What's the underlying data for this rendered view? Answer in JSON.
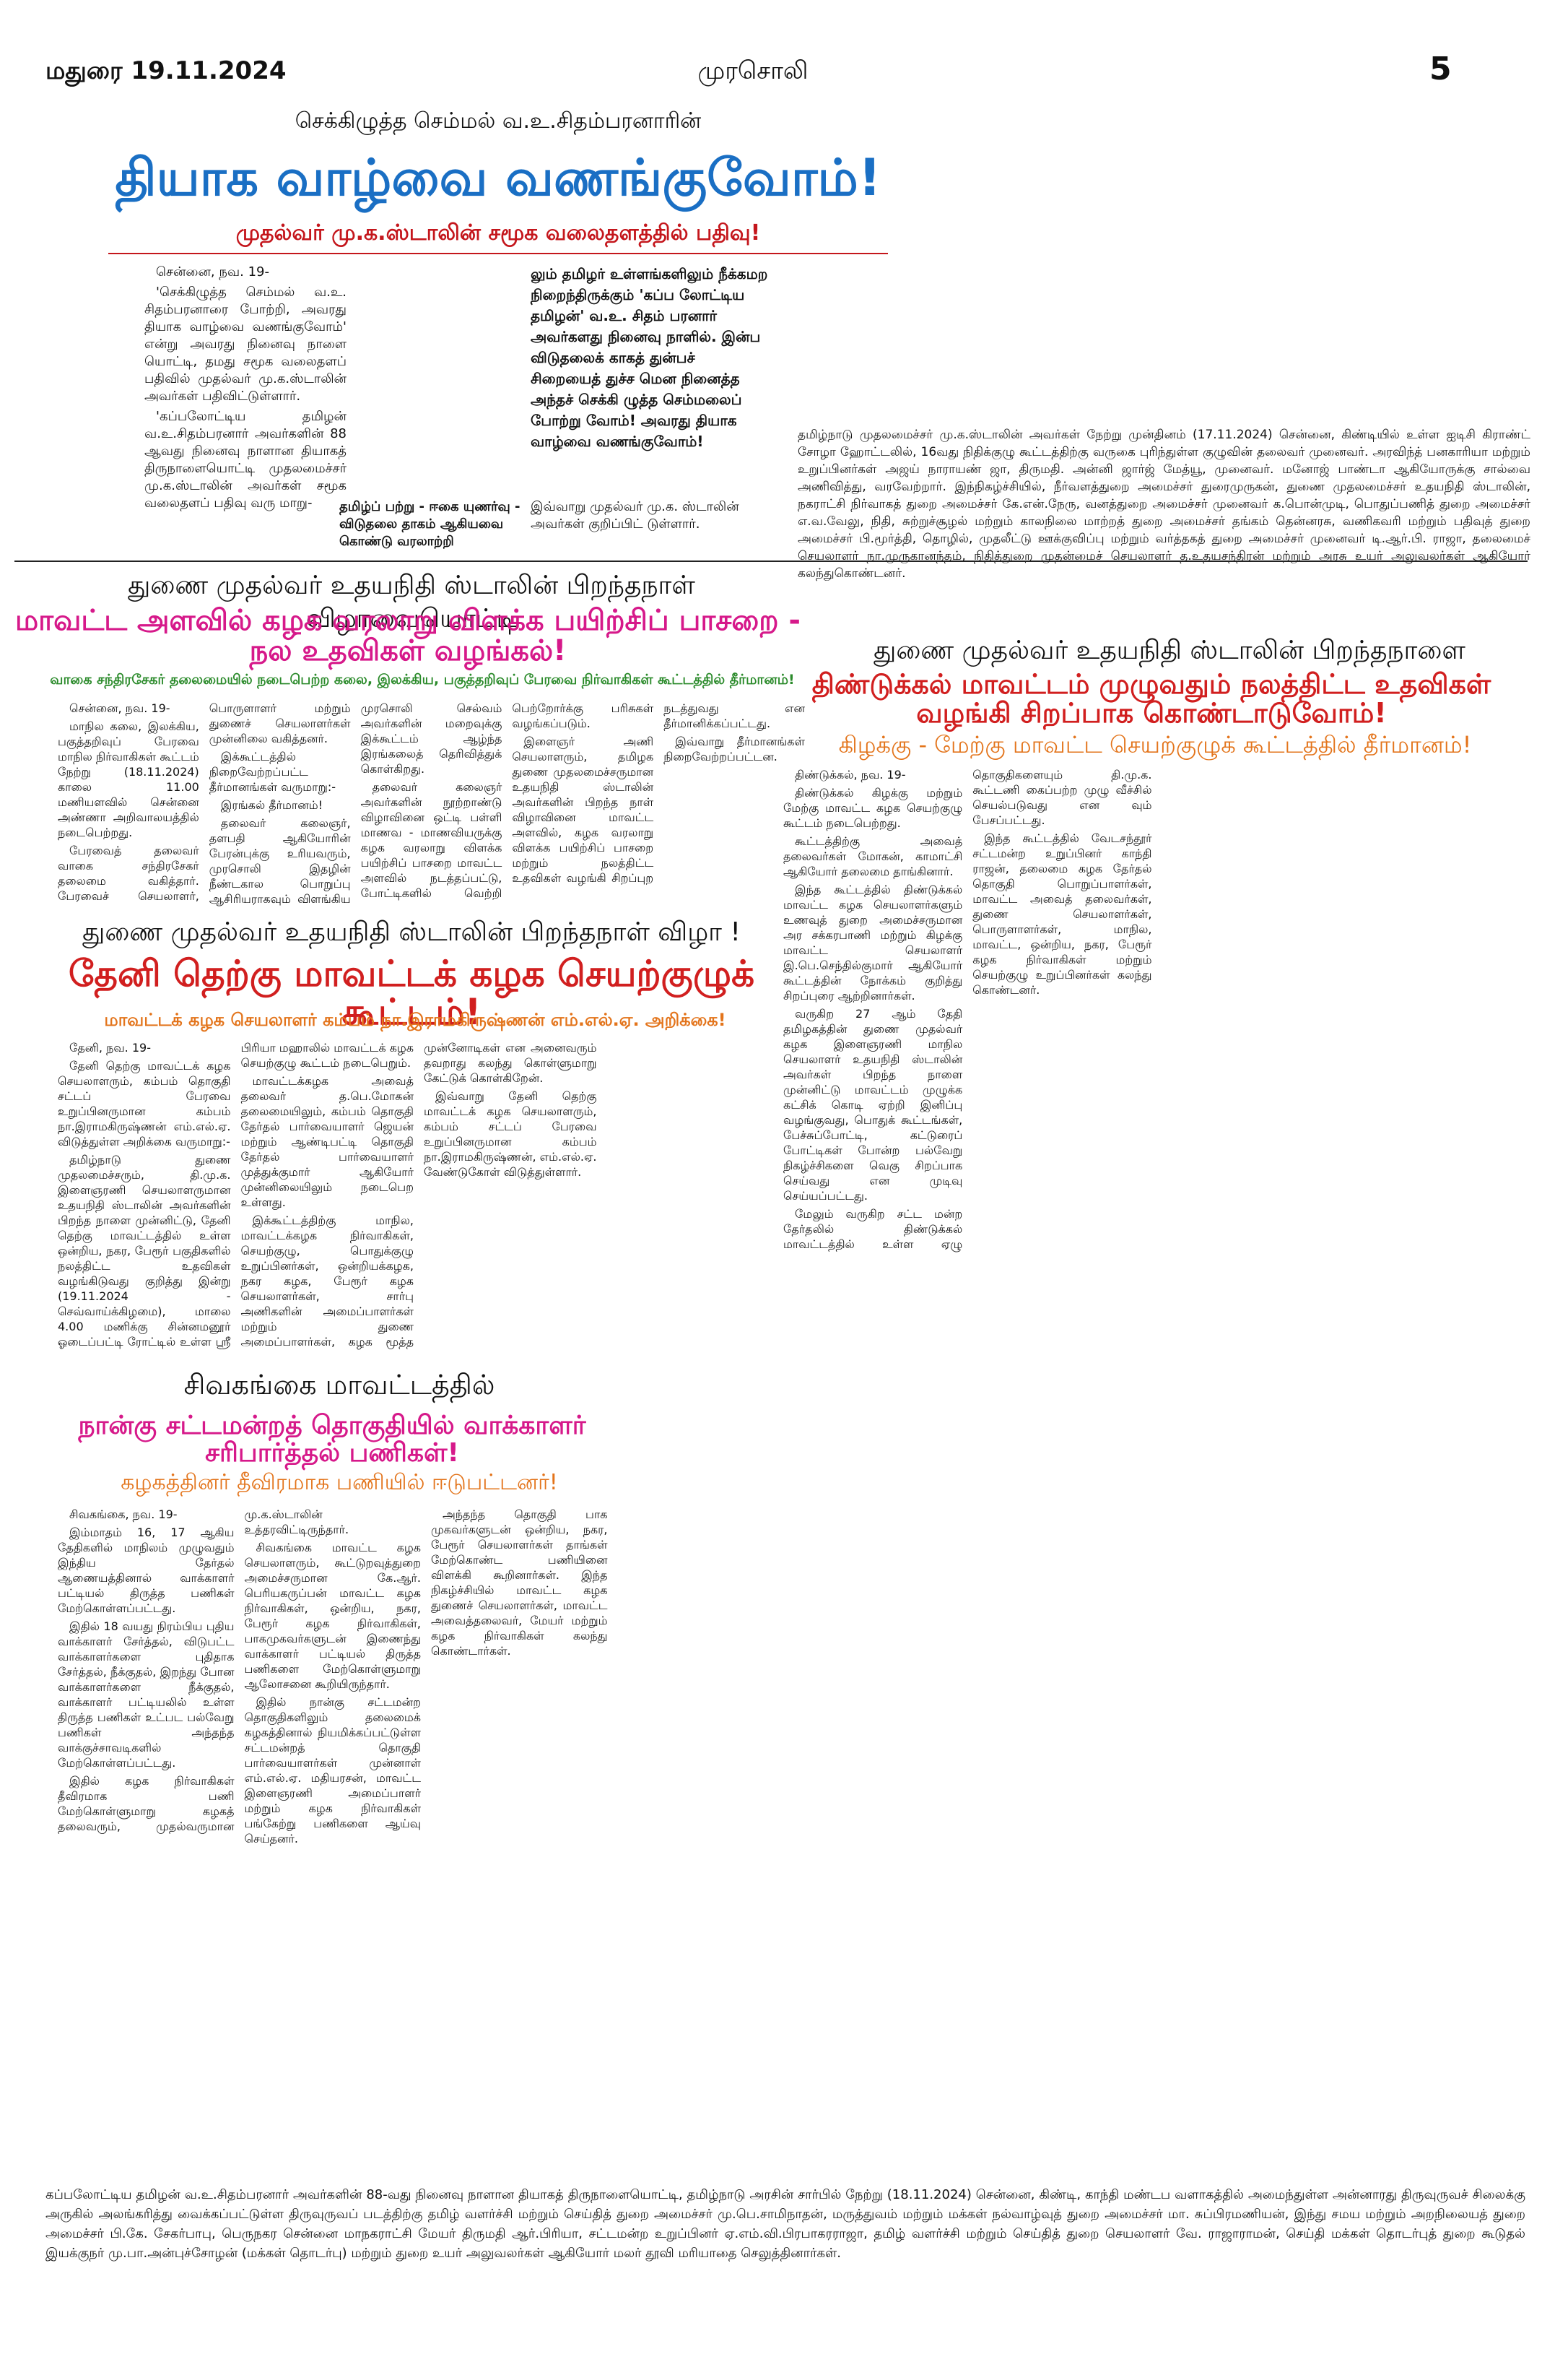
{
  "header": {
    "city_date": "மதுரை 19.11.2024",
    "paper": "முரசொலி",
    "page": "5"
  },
  "article1": {
    "kicker": "செக்கிழுத்த செம்மல் வ.உ.சிதம்பரனாரின்",
    "headline": "தியாக வாழ்வை வணங்குவோம்!",
    "subhead": "முதல்வர் மு.க.ஸ்டாலின் சமூக வலைதளத்தில் பதிவு!",
    "body": [
      "சென்னை, நவ. 19-",
      "'செக்கிழுத்த செம்மல் வ.உ. சிதம்பரனாரை போற்றி, அவரது தியாக வாழ்வை வணங்குவோம்' என்று அவரது நினைவு நாளை யொட்டி, தமது சமூக வலைதளப் பதிவில் முதல்வர் மு.க.ஸ்டாலின் அவர்கள் பதிவிட்டுள்ளார்.",
      "'கப்பலோட்டிய தமிழன் வ.உ.சிதம்பரனார் அவர்களின் 88 ஆவது நினைவு நாளான தியாகத் திருநாளையொட்டி முதலமைச்சர் மு.க.ஸ்டாலின் அவர்கள் சமூக வலைதளப் பதிவு வரு மாறு-"
    ],
    "bridge": "தமிழ்ப் பற்று - ஈகை யுணர்வு - விடுதலை தாகம் ஆகியவை கொண்டு வரலாற்றி",
    "box": "லும் தமிழர் உள்ளங்களிலும் நீக்கமற நிறைந்திருக்கும் 'கப்ப லோட்டிய தமிழன்' வ.உ. சிதம் பரனார் அவர்களது நினைவு நாளில். இன்ப விடுதலைக் காகத் துன்பச் சிறையைத் துச்ச மென நினைத்த அந்தச் செக்கி ழுத்த செம்மலைப் போற்று வோம்! அவரது தியாக வாழ்வை வணங்குவோம்!",
    "closing": "இவ்வாறு முதல்வர் மு.க. ஸ்டாலின் அவர்கள் குறிப்பிட் டுள்ளார்."
  },
  "photo_caption": "தமிழ்நாடு முதலமைச்சர் மு.க.ஸ்டாலின் அவர்கள் நேற்று முன்தினம் (17.11.2024) சென்னை, கிண்டியில் உள்ள ஐடிசி கிராண்ட் சோழா ஹோட்டலில், 16வது நிதிக்குழு கூட்டத்திற்கு வருகை புரிந்துள்ள குழுவின் தலைவர் முனைவர். அரவிந்த் பனகாரியா மற்றும் உறுப்பினர்கள் அஜய் நாராயண் ஜா, திருமதி. அன்னி ஜார்ஜ் மேத்யூ, முனைவர். மனோஜ் பாண்டா ஆகியோருக்கு சால்வை அணிவித்து, வரவேற்றார். இந்நிகழ்ச்சியில், நீர்வளத்துறை அமைச்சர் துரைமுருகன், துணை முதலமைச்சர் உதயநிதி ஸ்டாலின், நகராட்சி நிர்வாகத் துறை அமைச்சர் கே.என்.நேரு, வனத்துறை அமைச்சர் முனைவர் க.பொன்முடி, பொதுப்பணித் துறை அமைச்சர் எ.வ.வேலு, நிதி, சுற்றுச்சூழல் மற்றும் காலநிலை மாற்றத் துறை அமைச்சர் தங்கம் தென்னரசு, வணிகவரி மற்றும் பதிவுத் துறை அமைச்சர் பி.மூர்த்தி, தொழில், முதலீட்டு ஊக்குவிப்பு மற்றும் வர்த்தகத் துறை அமைச்சர் முனைவர் டி.ஆர்.பி. ராஜா, தலைமைச் செயலாளர் நா.முருகானந்தம், நிதித்துறை முதன்மைச் செயலாளர் த.உதயசந்திரன் மற்றும் அரசு உயர் அலுவலர்கள் ஆகியோர் கலந்துகொண்டனர்.",
  "article2": {
    "kicker": "துணை முதல்வர் உதயநிதி ஸ்டாலின் பிறந்தநாள் விழாவையொட்டி",
    "headline": "மாவட்ட அளவில் கழக வரலாறு விளக்க பயிற்சிப் பாசறை - நல உதவிகள் வழங்கல்!",
    "subhead": "வாகை சந்திரசேகர் தலைமையில் நடைபெற்ற கலை, இலக்கிய, பகுத்தறிவுப் பேரவை நிர்வாகிகள் கூட்டத்தில் தீர்மானம்!",
    "body": [
      "சென்னை, நவ. 19-",
      "மாநில கலை, இலக்கிய, பகுத்தறிவுப் பேரவை மாநில நிர்வாகிகள் கூட்டம் நேற்று (18.11.2024) காலை 11.00 மணியளவில் சென்னை அண்ணா அறிவாலயத்தில் நடைபெற்றது.",
      "பேரவைத் தலைவர் வாகை சந்திரசேகர் தலைமை வகித்தார். பேரவைச் செயலாளர், பொருளாளர் மற்றும் துணைச் செயலாளர்கள் முன்னிலை வகித்தனர்.",
      "இக்கூட்டத்தில் நிறைவேற்றப்பட்ட தீர்மானங்கள் வருமாறு:-",
      "இரங்கல் தீர்மானம்!",
      "தலைவர் கலைஞர், தளபதி ஆகியோரின் பேரன்புக்கு உரியவரும், முரசொலி இதழின் நீண்டகால பொறுப்பு ஆசிரியராகவும் விளங்கிய முரசொலி செல்வம் அவர்களின் மறைவுக்கு இக்கூட்டம் ஆழ்ந்த இரங்கலைத் தெரிவித்துக் கொள்கிறது.",
      "தலைவர் கலைஞர் அவர்களின் நூற்றாண்டு விழாவினை ஒட்டி பள்ளி மாணவ - மாணவியருக்கு கழக வரலாறு விளக்க பயிற்சிப் பாசறை மாவட்ட அளவில் நடத்தப்பட்டு, போட்டிகளில் வெற்றி பெற்றோர்க்கு பரிசுகள் வழங்கப்படும்.",
      "இளைஞர் அணி செயலாளரும், தமிழக துணை முதலமைச்சருமான உதயநிதி ஸ்டாலின் அவர்களின் பிறந்த நாள் விழாவினை மாவட்ட அளவில், கழக வரலாறு விளக்க பயிற்சிப் பாசறை மற்றும் நலத்திட்ட உதவிகள் வழங்கி சிறப்புற நடத்துவது என தீர்மானிக்கப்பட்டது.",
      "இவ்வாறு தீர்மானங்கள் நிறைவேற்றப்பட்டன."
    ]
  },
  "article3": {
    "kicker": "துணை முதல்வர் உதயநிதி ஸ்டாலின் பிறந்தநாளை",
    "headline": "திண்டுக்கல் மாவட்டம் முழுவதும் நலத்திட்ட உதவிகள் வழங்கி சிறப்பாக கொண்டாடுவோம்!",
    "subhead": "கிழக்கு - மேற்கு மாவட்ட செயற்குழுக் கூட்டத்தில் தீர்மானம்!",
    "body": [
      "திண்டுக்கல், நவ. 19-",
      "திண்டுக்கல் கிழக்கு மற்றும் மேற்கு மாவட்ட கழக செயற்குழு கூட்டம் நடைபெற்றது.",
      "கூட்டத்திற்கு அவைத் தலைவர்கள் மோகன், காமாட்சி ஆகியோர் தலைமை தாங்கினார்.",
      "இந்த கூட்டத்தில் திண்டுக்கல் மாவட்ட கழக செயலாளர்களும் உணவுத் துறை அமைச்சருமான அர சக்கரபாணி மற்றும் கிழக்கு மாவட்ட செயலாளர் இ.பெ.செந்தில்குமார் ஆகியோர் கூட்டத்தின் நோக்கம் குறித்து சிறப்புரை ஆற்றினார்கள்.",
      "வருகிற 27 ஆம் தேதி தமிழகத்தின் துணை முதல்வர் கழக இளைஞரணி மாநில செயலாளர் உதயநிதி ஸ்டாலின் அவர்கள் பிறந்த நாளை முன்னிட்டு மாவட்டம் முழுக்க கட்சிக் கொடி ஏற்றி இனிப்பு வழங்குவது, பொதுக் கூட்டங்கள், பேச்சுப்போட்டி, கட்டுரைப் போட்டிகள் போன்ற பல்வேறு நிகழ்ச்சிகளை வெகு சிறப்பாக செய்வது என முடிவு செய்யப்பட்டது.",
      "மேலும் வருகிற சட்ட மன்ற தேர்தலில் திண்டுக்கல் மாவட்டத்தில் உள்ள ஏழு தொகுதிகளையும் தி.மு.க. கூட்டணி கைப்பற்ற முழு வீச்சில் செயல்படுவது என வும் பேசப்பட்டது.",
      "இந்த கூட்டத்தில் வேடசந்தூர் சட்டமன்ற உறுப்பினர் காந்தி ராஜன், தலைமை கழக தேர்தல் தொகுதி பொறுப்பாளர்கள், மாவட்ட அவைத் தலைவர்கள், துணை செயலாளர்கள், பொருளாளர்கள், மாநில, மாவட்ட, ஒன்றிய, நகர, பேரூர் கழக நிர்வாகிகள் மற்றும் செயற்குழு உறுப்பினர்கள் கலந்து கொண்டனர்."
    ]
  },
  "article4": {
    "kicker": "துணை முதல்வர் உதயநிதி ஸ்டாலின் பிறந்தநாள் விழா !",
    "headline": "தேனி தெற்கு மாவட்டக் கழக செயற்குழுக் கூட்டம்!",
    "subhead": "மாவட்டக் கழக செயலாளர் கம்பம் நா.இராமகிருஷ்ணன் எம்.எல்.ஏ. அறிக்கை!",
    "body": [
      "தேனி, நவ. 19-",
      "தேனி தெற்கு மாவட்டக் கழக செயலாளரும், கம்பம் தொகுதி சட்டப் பேரவை உறுப்பினருமான கம்பம் நா.இராமகிருஷ்ணன் எம்.எல்.ஏ. விடுத்துள்ள அறிக்கை வருமாறு:-",
      "தமிழ்நாடு துணை முதலமைச்சரும், தி.மு.க. இளைஞரணி செயலாளருமான உதயநிதி ஸ்டாலின் அவர்களின் பிறந்த நாளை முன்னிட்டு, தேனி தெற்கு மாவட்டத்தில் உள்ள ஒன்றிய, நகர, பேரூர் பகுதிகளில் நலத்திட்ட உதவிகள் வழங்கிடுவது குறித்து இன்று (19.11.2024 - செவ்வாய்க்கிழமை), மாலை 4.00 மணிக்கு சின்னமனூர் ஓடைப்பட்டி ரோட்டில் உள்ள ஸ்ரீ பிரியா மஹாலில் மாவட்டக் கழக செயற்குழு கூட்டம் நடைபெறும்.",
      "மாவட்டக்கழக அவைத் தலைவர் த.பெ.மோகன் தலைமையிலும், கம்பம் தொகுதி தேர்தல் பார்வையாளர் ஜெயன் மற்றும் ஆண்டிபட்டி தொகுதி தேர்தல் பார்வையாளர் முத்துக்குமார் ஆகியோர் முன்னிலையிலும் நடைபெற உள்ளது.",
      "இக்கூட்டத்திற்கு மாநில, மாவட்டக்கழக நிர்வாகிகள், செயற்குழு, பொதுக்குழு உறுப்பினர்கள், ஒன்றியக்கழக, நகர கழக, பேரூர் கழக செயலாளர்கள், சார்பு அணிகளின் அமைப்பாளர்கள் மற்றும் துணை அமைப்பாளர்கள், கழக மூத்த முன்னோடிகள் என அனைவரும் தவறாது கலந்து கொள்ளுமாறு கேட்டுக் கொள்கிறேன்.",
      "இவ்வாறு தேனி தெற்கு மாவட்டக் கழக செயலாளரும், கம்பம் சட்டப் பேரவை உறுப்பினருமான கம்பம் நா.இராமகிருஷ்ணன், எம்.எல்.ஏ. வேண்டுகோள் விடுத்துள்ளார்."
    ]
  },
  "article5": {
    "kicker": "சிவகங்கை மாவட்டத்தில்",
    "headline": "நான்கு சட்டமன்றத் தொகுதியில் வாக்காளர் சரிபார்த்தல் பணிகள்!",
    "subhead": "கழகத்தினர் தீவிரமாக பணியில் ஈடுபட்டனர்!",
    "body": [
      "சிவகங்கை, நவ. 19-",
      "இம்மாதம் 16, 17 ஆகிய தேதிகளில் மாநிலம் முழுவதும் இந்திய தேர்தல் ஆணையத்தினால் வாக்காளர் பட்டியல் திருத்த பணிகள் மேற்கொள்ளப்பட்டது.",
      "இதில் 18 வயது நிரம்பிய புதிய வாக்காளர் சேர்த்தல், விடுபட்ட வாக்காளர்களை புதிதாக சேர்த்தல், நீக்குதல், இறந்து போன வாக்காளர்களை நீக்குதல், வாக்காளர் பட்டியலில் உள்ள திருத்த பணிகள் உட்பட பல்வேறு பணிகள் அந்தந்த வாக்குச்சாவடிகளில் மேற்கொள்ளப்பட்டது.",
      "இதில் கழக நிர்வாகிகள் தீவிரமாக பணி மேற்கொள்ளுமாறு கழகத் தலைவரும், முதல்வருமான மு.க.ஸ்டாலின் உத்தரவிட்டிருந்தார்.",
      "சிவகங்கை மாவட்ட கழக செயலாளரும், கூட்டுறவுத்துறை அமைச்சருமான கே.ஆர். பெரியகருப்பன் மாவட்ட கழக நிர்வாகிகள், ஒன்றிய, நகர, பேரூர் கழக நிர்வாகிகள், பாகமுகவர்களுடன் இணைந்து வாக்காளர் பட்டியல் திருத்த பணிகளை மேற்கொள்ளுமாறு ஆலோசனை கூறியிருந்தார்.",
      "இதில் நான்கு சட்டமன்ற தொகுதிகளிலும் தலைமைக் கழகத்தினால் நியமிக்கப்பட்டுள்ள சட்டமன்றத் தொகுதி பார்வையாளர்கள் முன்னாள் எம்.எல்.ஏ. மதியரசன், மாவட்ட இளைஞரணி அமைப்பாளர் மற்றும் கழக நிர்வாகிகள் பங்கேற்று பணிகளை ஆய்வு செய்தனர்.",
      "அந்தந்த தொகுதி பாக முகவர்களுடன் ஒன்றிய, நகர, பேரூர் செயலாளர்கள் தாங்கள் மேற்கொண்ட பணியினை விளக்கி கூறினார்கள். இந்த நிகழ்ச்சியில் மாவட்ட கழக துணைச் செயலாளர்கள், மாவட்ட அவைத்தலைவர், மேயர் மற்றும் கழக நிர்வாகிகள் கலந்து கொண்டார்கள்."
    ]
  },
  "bottom_caption": "கப்பலோட்டிய தமிழன் வ.உ.சிதம்பரனார் அவர்களின் 88-வது நினைவு நாளான தியாகத் திருநாளையொட்டி, தமிழ்நாடு அரசின் சார்பில் நேற்று (18.11.2024) சென்னை, கிண்டி, காந்தி மண்டப வளாகத்தில் அமைந்துள்ள அன்னாரது திருவுருவச் சிலைக்கு அருகில் அலங்கரித்து வைக்கப்பட்டுள்ள திருவுருவப் படத்திற்கு தமிழ் வளர்ச்சி மற்றும் செய்தித் துறை அமைச்சர் மு.பெ.சாமிநாதன், மருத்துவம் மற்றும் மக்கள் நல்வாழ்வுத் துறை அமைச்சர் மா. சுப்பிரமணியன், இந்து சமய மற்றும் அறநிலையத் துறை அமைச்சர் பி.கே. சேகர்பாபு, பெருநகர சென்னை மாநகராட்சி மேயர் திருமதி ஆர்.பிரியா, சட்டமன்ற உறுப்பினர் ஏ.எம்.வி.பிரபாகரராஜா, தமிழ் வளர்ச்சி மற்றும் செய்தித் துறை செயலாளர் வே. ராஜாராமன், செய்தி மக்கள் தொடர்புத் துறை கூடுதல் இயக்குநர் மு.பா.அன்புச்சோழன் (மக்கள் தொடர்பு) மற்றும் துறை உயர் அலுவலர்கள் ஆகியோர் மலர் தூவி மரியாதை செலுத்தினார்கள்."
}
